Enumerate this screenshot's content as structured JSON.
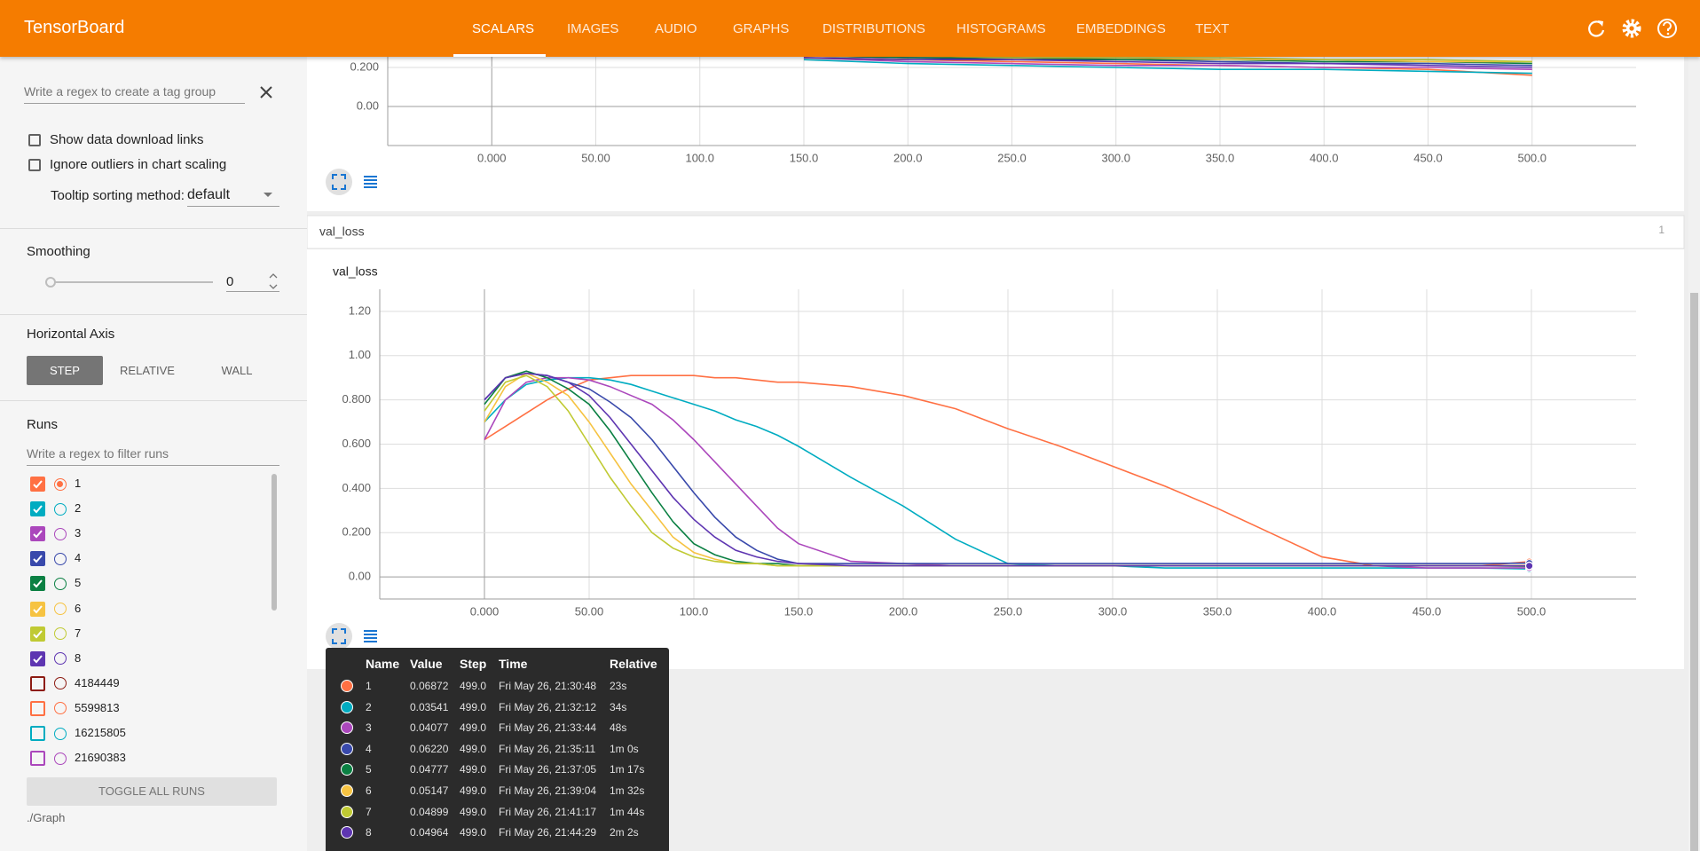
{
  "header": {
    "title": "TensorBoard",
    "tabs": [
      "SCALARS",
      "IMAGES",
      "AUDIO",
      "GRAPHS",
      "DISTRIBUTIONS",
      "HISTOGRAMS",
      "EMBEDDINGS",
      "TEXT"
    ]
  },
  "sidebar": {
    "tag_regex_placeholder": "Write a regex to create a tag group",
    "options": [
      "Show data download links",
      "Ignore outliers in chart scaling"
    ],
    "tooltip_sorting_label": "Tooltip sorting method:",
    "tooltip_sorting_value": "default",
    "smoothing_label": "Smoothing",
    "smoothing_value": 0,
    "horizontal_axis_label": "Horizontal Axis",
    "axis_buttons": [
      "STEP",
      "RELATIVE",
      "WALL"
    ],
    "runs_label": "Runs",
    "runs_filter_placeholder": "Write a regex to filter runs",
    "runs": [
      {
        "name": "1",
        "color": "#ff7043",
        "checked": true,
        "selected": true
      },
      {
        "name": "2",
        "color": "#00acc1",
        "checked": true
      },
      {
        "name": "3",
        "color": "#ab47bc",
        "checked": true
      },
      {
        "name": "4",
        "color": "#3949ab",
        "checked": true
      },
      {
        "name": "5",
        "color": "#0b8043",
        "checked": true
      },
      {
        "name": "6",
        "color": "#f6c342",
        "checked": true
      },
      {
        "name": "7",
        "color": "#c0ca33",
        "checked": true
      },
      {
        "name": "8",
        "color": "#5e35b1",
        "checked": true
      },
      {
        "name": "4184449",
        "color": "#8d1c13",
        "checked": false
      },
      {
        "name": "5599813",
        "color": "#ff7043",
        "checked": false
      },
      {
        "name": "16215805",
        "color": "#00acc1",
        "checked": false
      },
      {
        "name": "21690383",
        "color": "#ab47bc",
        "checked": false
      }
    ],
    "toggle_button": "TOGGLE ALL RUNS",
    "logdir": "./Graph"
  },
  "tag_group": {
    "name": "val_loss",
    "count": 1
  },
  "chart_data": [
    {
      "type": "line",
      "x": [
        150,
        200,
        250,
        300,
        350,
        400,
        450,
        500
      ],
      "series": [
        {
          "name": "1",
          "color": "#ff7043",
          "values": [
            0.25,
            0.24,
            0.23,
            0.22,
            0.21,
            0.2,
            0.19,
            0.16
          ]
        },
        {
          "name": "2",
          "color": "#00acc1",
          "values": [
            0.24,
            0.22,
            0.21,
            0.2,
            0.19,
            0.19,
            0.18,
            0.17
          ]
        },
        {
          "name": "3",
          "color": "#ab47bc",
          "values": [
            0.25,
            0.23,
            0.22,
            0.21,
            0.21,
            0.2,
            0.2,
            0.19
          ]
        },
        {
          "name": "4",
          "color": "#3949ab",
          "values": [
            0.26,
            0.25,
            0.24,
            0.24,
            0.23,
            0.22,
            0.22,
            0.21
          ]
        },
        {
          "name": "5",
          "color": "#0b8043",
          "values": [
            0.26,
            0.25,
            0.25,
            0.24,
            0.24,
            0.23,
            0.23,
            0.22
          ]
        },
        {
          "name": "6",
          "color": "#f6c342",
          "values": [
            0.26,
            0.26,
            0.25,
            0.25,
            0.24,
            0.24,
            0.23,
            0.23
          ]
        },
        {
          "name": "7",
          "color": "#c0ca33",
          "values": [
            0.26,
            0.26,
            0.25,
            0.25,
            0.25,
            0.24,
            0.24,
            0.23
          ]
        },
        {
          "name": "8",
          "color": "#5e35b1",
          "values": [
            0.25,
            0.24,
            0.24,
            0.23,
            0.22,
            0.22,
            0.21,
            0.2
          ]
        }
      ],
      "xlim": [
        -50,
        550
      ],
      "ylim": [
        -0.2,
        1.2
      ],
      "xticks": [
        {
          "value": 0,
          "label": "0.000"
        },
        {
          "value": 50,
          "label": "50.00"
        },
        {
          "value": 100,
          "label": "100.0"
        },
        {
          "value": 150,
          "label": "150.0"
        },
        {
          "value": 200,
          "label": "200.0"
        },
        {
          "value": 250,
          "label": "250.0"
        },
        {
          "value": 300,
          "label": "300.0"
        },
        {
          "value": 350,
          "label": "350.0"
        },
        {
          "value": 400,
          "label": "400.0"
        },
        {
          "value": 450,
          "label": "450.0"
        },
        {
          "value": 500,
          "label": "500.0"
        }
      ],
      "yticks": [
        {
          "value": 0,
          "label": "0.00"
        },
        {
          "value": 0.2,
          "label": "0.200"
        }
      ],
      "grid": true
    },
    {
      "type": "line",
      "title": "val_loss",
      "x": [
        0,
        10,
        20,
        30,
        40,
        50,
        60,
        70,
        80,
        90,
        100,
        110,
        120,
        130,
        140,
        150,
        175,
        200,
        225,
        250,
        275,
        300,
        325,
        350,
        375,
        400,
        425,
        450,
        475,
        499
      ],
      "series": [
        {
          "name": "1",
          "color": "#ff7043",
          "values": [
            0.62,
            0.68,
            0.74,
            0.8,
            0.85,
            0.89,
            0.9,
            0.91,
            0.91,
            0.91,
            0.91,
            0.9,
            0.9,
            0.89,
            0.88,
            0.88,
            0.86,
            0.82,
            0.76,
            0.67,
            0.59,
            0.5,
            0.41,
            0.31,
            0.2,
            0.09,
            0.05,
            0.05,
            0.05,
            0.06872
          ]
        },
        {
          "name": "2",
          "color": "#00acc1",
          "values": [
            0.7,
            0.8,
            0.87,
            0.89,
            0.9,
            0.9,
            0.89,
            0.87,
            0.84,
            0.81,
            0.78,
            0.75,
            0.71,
            0.68,
            0.64,
            0.59,
            0.45,
            0.32,
            0.17,
            0.06,
            0.05,
            0.05,
            0.04,
            0.04,
            0.04,
            0.04,
            0.04,
            0.04,
            0.04,
            0.03541
          ]
        },
        {
          "name": "3",
          "color": "#ab47bc",
          "values": [
            0.62,
            0.8,
            0.88,
            0.9,
            0.9,
            0.89,
            0.86,
            0.82,
            0.78,
            0.71,
            0.62,
            0.52,
            0.42,
            0.32,
            0.22,
            0.15,
            0.07,
            0.06,
            0.05,
            0.05,
            0.05,
            0.05,
            0.05,
            0.05,
            0.05,
            0.05,
            0.05,
            0.04,
            0.04,
            0.04077
          ]
        },
        {
          "name": "4",
          "color": "#3949ab",
          "values": [
            0.8,
            0.9,
            0.92,
            0.91,
            0.88,
            0.85,
            0.79,
            0.72,
            0.62,
            0.5,
            0.38,
            0.27,
            0.18,
            0.12,
            0.08,
            0.06,
            0.06,
            0.06,
            0.06,
            0.06,
            0.06,
            0.06,
            0.06,
            0.06,
            0.06,
            0.06,
            0.06,
            0.06,
            0.06,
            0.0622
          ]
        },
        {
          "name": "5",
          "color": "#0b8043",
          "values": [
            0.78,
            0.9,
            0.93,
            0.9,
            0.85,
            0.78,
            0.66,
            0.52,
            0.38,
            0.25,
            0.15,
            0.1,
            0.07,
            0.06,
            0.06,
            0.05,
            0.05,
            0.05,
            0.05,
            0.05,
            0.05,
            0.05,
            0.05,
            0.05,
            0.05,
            0.05,
            0.05,
            0.05,
            0.05,
            0.04777
          ]
        },
        {
          "name": "6",
          "color": "#f6c342",
          "values": [
            0.7,
            0.86,
            0.92,
            0.88,
            0.82,
            0.7,
            0.56,
            0.42,
            0.3,
            0.18,
            0.11,
            0.08,
            0.06,
            0.06,
            0.05,
            0.05,
            0.05,
            0.05,
            0.05,
            0.05,
            0.05,
            0.05,
            0.05,
            0.05,
            0.05,
            0.05,
            0.05,
            0.05,
            0.05,
            0.05147
          ]
        },
        {
          "name": "7",
          "color": "#c0ca33",
          "values": [
            0.75,
            0.88,
            0.91,
            0.86,
            0.75,
            0.6,
            0.45,
            0.32,
            0.2,
            0.13,
            0.09,
            0.07,
            0.06,
            0.06,
            0.05,
            0.05,
            0.05,
            0.05,
            0.05,
            0.05,
            0.05,
            0.05,
            0.05,
            0.05,
            0.05,
            0.05,
            0.05,
            0.05,
            0.05,
            0.04899
          ]
        },
        {
          "name": "8",
          "color": "#5e35b1",
          "values": [
            0.8,
            0.9,
            0.92,
            0.91,
            0.88,
            0.82,
            0.72,
            0.6,
            0.48,
            0.36,
            0.26,
            0.18,
            0.12,
            0.09,
            0.07,
            0.06,
            0.05,
            0.05,
            0.05,
            0.05,
            0.05,
            0.05,
            0.05,
            0.05,
            0.05,
            0.05,
            0.05,
            0.05,
            0.05,
            0.04964
          ]
        }
      ],
      "xlim": [
        -50,
        550
      ],
      "ylim": [
        -0.1,
        1.3
      ],
      "xticks": [
        {
          "value": 0,
          "label": "0.000"
        },
        {
          "value": 50,
          "label": "50.00"
        },
        {
          "value": 100,
          "label": "100.0"
        },
        {
          "value": 150,
          "label": "150.0"
        },
        {
          "value": 200,
          "label": "200.0"
        },
        {
          "value": 250,
          "label": "250.0"
        },
        {
          "value": 300,
          "label": "300.0"
        },
        {
          "value": 350,
          "label": "350.0"
        },
        {
          "value": 400,
          "label": "400.0"
        },
        {
          "value": 450,
          "label": "450.0"
        },
        {
          "value": 500,
          "label": "500.0"
        }
      ],
      "yticks": [
        {
          "value": 0,
          "label": "0.00"
        },
        {
          "value": 0.2,
          "label": "0.200"
        },
        {
          "value": 0.4,
          "label": "0.400"
        },
        {
          "value": 0.6,
          "label": "0.600"
        },
        {
          "value": 0.8,
          "label": "0.800"
        },
        {
          "value": 1,
          "label": "1.00"
        },
        {
          "value": 1.2,
          "label": "1.20"
        }
      ],
      "grid": true
    }
  ],
  "tooltip": {
    "columns": [
      "Name",
      "Value",
      "Step",
      "Time",
      "Relative"
    ],
    "rows": [
      [
        "1",
        "0.06872",
        "499.0",
        "Fri May 26, 21:30:48",
        "23s"
      ],
      [
        "2",
        "0.03541",
        "499.0",
        "Fri May 26, 21:32:12",
        "34s"
      ],
      [
        "3",
        "0.04077",
        "499.0",
        "Fri May 26, 21:33:44",
        "48s"
      ],
      [
        "4",
        "0.06220",
        "499.0",
        "Fri May 26, 21:35:11",
        "1m 0s"
      ],
      [
        "5",
        "0.04777",
        "499.0",
        "Fri May 26, 21:37:05",
        "1m 17s"
      ],
      [
        "6",
        "0.05147",
        "499.0",
        "Fri May 26, 21:39:04",
        "1m 32s"
      ],
      [
        "7",
        "0.04899",
        "499.0",
        "Fri May 26, 21:41:17",
        "1m 44s"
      ],
      [
        "8",
        "0.04964",
        "499.0",
        "Fri May 26, 21:44:29",
        "2m 2s"
      ]
    ]
  }
}
